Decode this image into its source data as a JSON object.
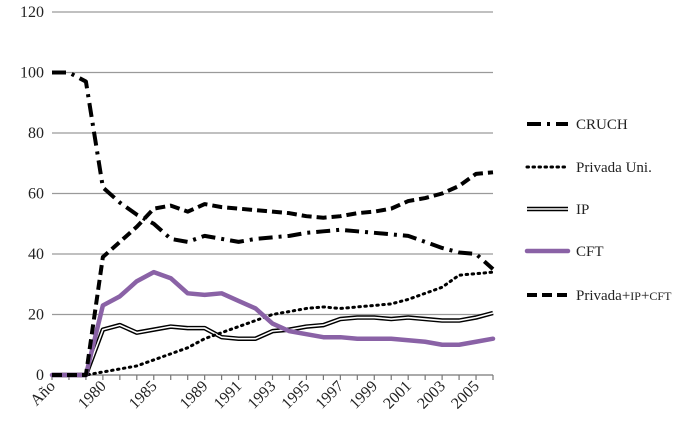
{
  "chart_data": {
    "type": "line",
    "title": "",
    "xlabel": "",
    "ylabel": "",
    "ylim": [
      0,
      120
    ],
    "yticks": [
      0,
      20,
      40,
      60,
      80,
      100,
      120
    ],
    "grid": "horizontal",
    "legend_placement": "right",
    "x_categories": [
      "Año",
      "",
      "",
      "1980",
      "",
      "",
      "1985",
      "",
      "",
      "1989",
      "",
      "1991",
      "",
      "1993",
      "",
      "1995",
      "",
      "1997",
      "",
      "1999",
      "",
      "2001",
      "",
      "2003",
      "",
      "2005",
      ""
    ],
    "x_tick_labels": [
      "Año",
      "1980",
      "1985",
      "1989",
      "1991",
      "1993",
      "1995",
      "1997",
      "1999",
      "2001",
      "2003",
      "2005"
    ],
    "series": [
      {
        "name": "CRUCH",
        "style": "dashdot",
        "color": "#000000",
        "values": [
          100,
          100,
          97,
          62,
          57,
          53,
          50,
          45,
          44,
          46,
          45,
          44,
          45,
          45.5,
          46,
          47,
          47.5,
          48,
          47.5,
          47,
          46.5,
          46,
          44,
          42,
          40.5,
          40,
          35
        ]
      },
      {
        "name": "Privada Uni.",
        "style": "dotted",
        "color": "#000000",
        "values": [
          0,
          0,
          0,
          1,
          2,
          3,
          5,
          7,
          9,
          12,
          14,
          16,
          18,
          20,
          21,
          22,
          22.5,
          22,
          22.5,
          23,
          23.5,
          25,
          27,
          29,
          33,
          33.5,
          34
        ]
      },
      {
        "name": "IP",
        "style": "double",
        "color": "#000000",
        "values": [
          0,
          0,
          0,
          15,
          16.5,
          14,
          15,
          16,
          15.5,
          15.5,
          12.5,
          12,
          12,
          14.5,
          15,
          16,
          16.5,
          18.5,
          19,
          19,
          18.5,
          19,
          18.5,
          18,
          18,
          19,
          20.5
        ]
      },
      {
        "name": "CFT",
        "style": "solid",
        "color": "#8a62a6",
        "values": [
          0,
          0,
          0,
          23,
          26,
          31,
          34,
          32,
          27,
          26.5,
          27,
          24.5,
          22,
          17,
          14.5,
          13.5,
          12.5,
          12.5,
          12,
          12,
          12,
          11.5,
          11,
          10,
          10,
          11,
          12
        ]
      },
      {
        "name": "Privada+IP+CFT",
        "style": "dashed",
        "color": "#000000",
        "values": [
          0,
          0,
          0,
          39,
          44,
          49,
          55,
          56,
          54,
          56.5,
          55.5,
          55,
          54.5,
          54,
          53.5,
          52.5,
          52,
          52.5,
          53.5,
          54,
          55,
          57.5,
          58.5,
          60,
          62.5,
          66.5,
          67
        ]
      }
    ]
  },
  "legend": {
    "items": [
      {
        "name_small": "CRUCH",
        "name": "",
        "prefix": ""
      },
      {
        "name": "Privada Uni.",
        "name_small": "",
        "prefix": ""
      },
      {
        "name_small": "IP",
        "name": "",
        "prefix": ""
      },
      {
        "name_small": "CFT",
        "name": "",
        "prefix": ""
      },
      {
        "prefix": "Privada+",
        "name_small": "IP",
        "plus": "+",
        "name_small2": "CFT"
      }
    ]
  }
}
